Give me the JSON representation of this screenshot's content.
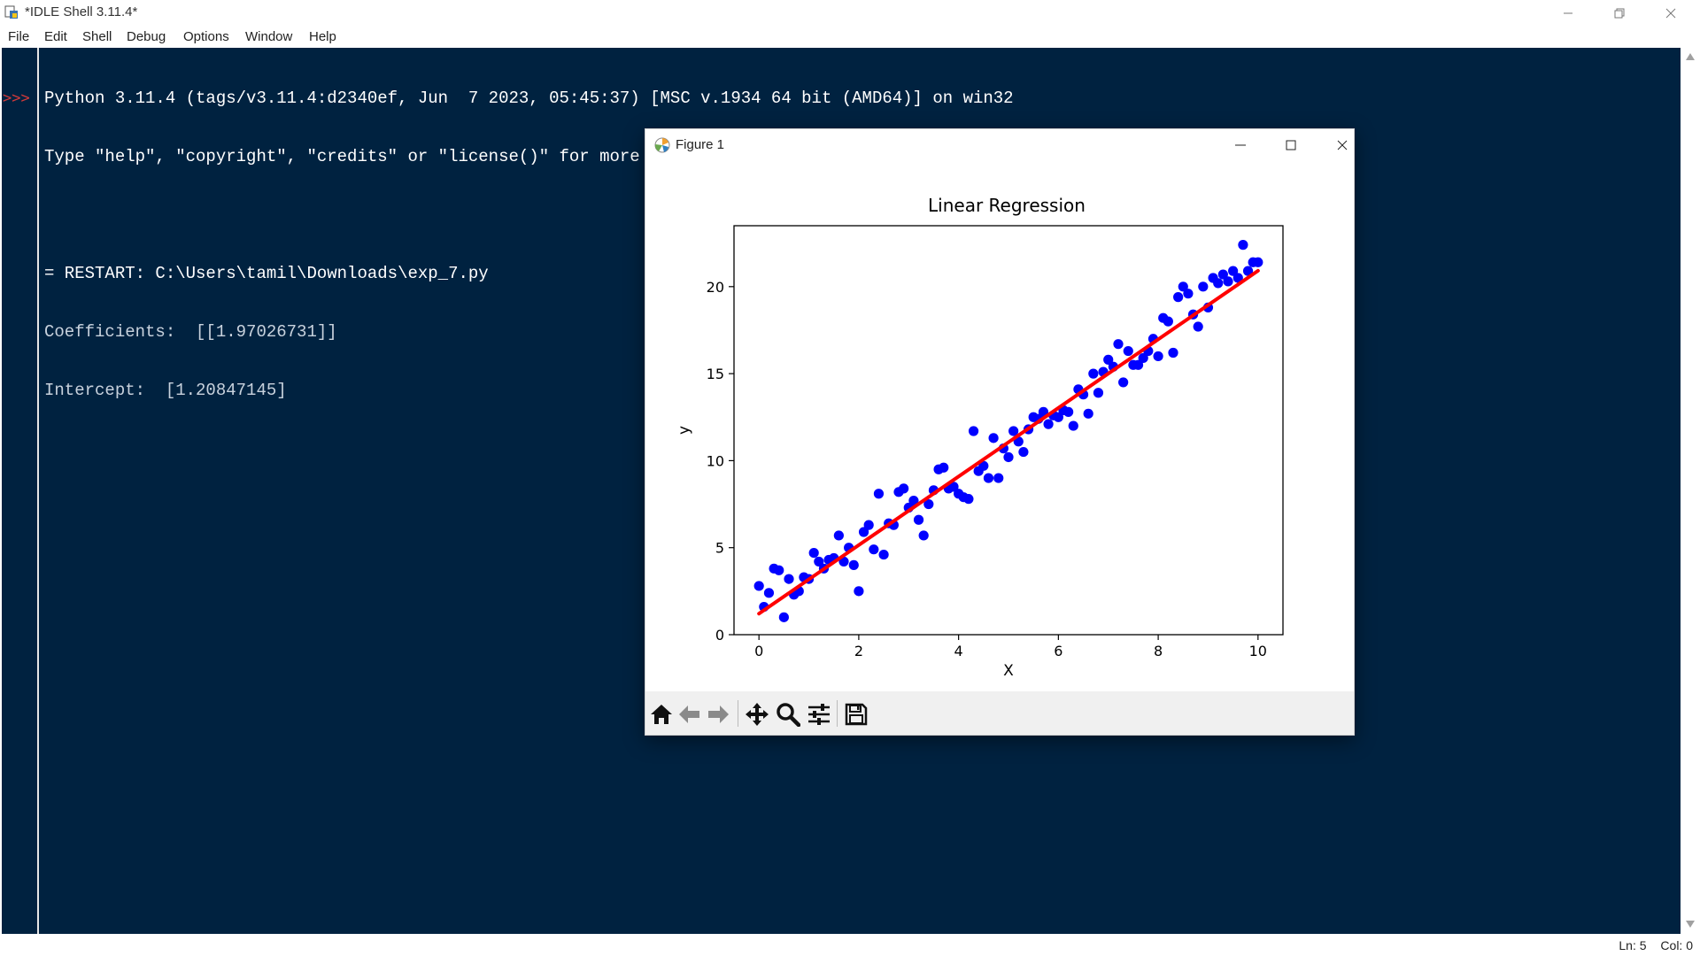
{
  "window": {
    "title": "*IDLE Shell 3.11.4*",
    "menu": [
      "File",
      "Edit",
      "Shell",
      "Debug",
      "Options",
      "Window",
      "Help"
    ]
  },
  "shell": {
    "prompt": ">>>",
    "lines": [
      "Python 3.11.4 (tags/v3.11.4:d2340ef, Jun  7 2023, 05:45:37) [MSC v.1934 64 bit (AMD64)] on win32",
      "Type \"help\", \"copyright\", \"credits\" or \"license()\" for more information.",
      "",
      "= RESTART: C:\\Users\\tamil\\Downloads\\exp_7.py",
      "Coefficients:  [[1.97026731]]",
      "Intercept:  [1.20847145]"
    ]
  },
  "status": {
    "line": "Ln: 5",
    "col": "Col: 0"
  },
  "figure": {
    "window_title": "Figure 1",
    "toolbar_icons": [
      "home-icon",
      "back-arrow-icon",
      "forward-arrow-icon",
      "pan-icon",
      "zoom-icon",
      "configure-subplots-icon",
      "save-icon"
    ]
  },
  "chart_data": {
    "type": "scatter",
    "title": "Linear Regression",
    "xlabel": "X",
    "ylabel": "y",
    "xlim": [
      -0.5,
      10.5
    ],
    "ylim": [
      0,
      23.5
    ],
    "xticks": [
      0,
      2,
      4,
      6,
      8,
      10
    ],
    "yticks": [
      0,
      5,
      10,
      15,
      20
    ],
    "grid": false,
    "colors": {
      "points": "#0000ff",
      "line": "#ff0000"
    },
    "series": [
      {
        "type": "scatter",
        "x": [
          0.0,
          0.1,
          0.2,
          0.3,
          0.4,
          0.5,
          0.6,
          0.7,
          0.8,
          0.9,
          1.0,
          1.1,
          1.2,
          1.3,
          1.4,
          1.5,
          1.6,
          1.7,
          1.8,
          1.9,
          2.0,
          2.1,
          2.2,
          2.3,
          2.4,
          2.5,
          2.6,
          2.7,
          2.8,
          2.9,
          3.0,
          3.1,
          3.2,
          3.3,
          3.4,
          3.5,
          3.6,
          3.7,
          3.8,
          3.9,
          4.0,
          4.1,
          4.2,
          4.3,
          4.4,
          4.5,
          4.6,
          4.7,
          4.8,
          4.9,
          5.0,
          5.1,
          5.2,
          5.3,
          5.4,
          5.5,
          5.6,
          5.7,
          5.8,
          5.9,
          6.0,
          6.1,
          6.2,
          6.3,
          6.4,
          6.5,
          6.6,
          6.7,
          6.8,
          6.9,
          7.0,
          7.1,
          7.2,
          7.3,
          7.4,
          7.5,
          7.6,
          7.7,
          7.8,
          7.9,
          8.0,
          8.1,
          8.2,
          8.3,
          8.4,
          8.5,
          8.6,
          8.7,
          8.8,
          8.9,
          9.0,
          9.1,
          9.2,
          9.3,
          9.4,
          9.5,
          9.6,
          9.7,
          9.8,
          9.9,
          10.0
        ],
        "y": [
          2.8,
          1.6,
          2.4,
          3.8,
          3.7,
          1.0,
          3.2,
          2.3,
          2.5,
          3.3,
          3.2,
          4.7,
          4.2,
          3.8,
          4.3,
          4.4,
          5.7,
          4.2,
          5.0,
          4.0,
          2.5,
          5.9,
          6.3,
          4.9,
          8.1,
          4.6,
          6.4,
          6.3,
          8.2,
          8.4,
          7.3,
          7.7,
          6.6,
          5.7,
          7.5,
          8.3,
          9.5,
          9.6,
          8.4,
          8.5,
          8.1,
          7.9,
          7.8,
          11.7,
          9.4,
          9.7,
          9.0,
          11.3,
          9.0,
          10.7,
          10.2,
          11.7,
          11.1,
          10.5,
          11.8,
          12.5,
          12.4,
          12.8,
          12.1,
          12.6,
          12.5,
          12.9,
          12.8,
          12.0,
          14.1,
          13.8,
          12.7,
          15.0,
          13.9,
          15.1,
          15.8,
          15.4,
          16.7,
          14.5,
          16.3,
          15.5,
          15.5,
          15.9,
          16.3,
          17.0,
          16.0,
          18.2,
          18.0,
          16.2,
          19.4,
          20.0,
          19.6,
          18.4,
          17.7,
          20.0,
          18.8,
          20.5,
          20.2,
          20.7,
          20.3,
          20.9,
          20.5,
          22.4,
          20.9,
          21.4,
          21.4
        ],
        "color": "#0000ff"
      },
      {
        "type": "line",
        "x": [
          0,
          10
        ],
        "y": [
          1.20847145,
          20.91114455
        ],
        "color": "#ff0000"
      }
    ]
  }
}
